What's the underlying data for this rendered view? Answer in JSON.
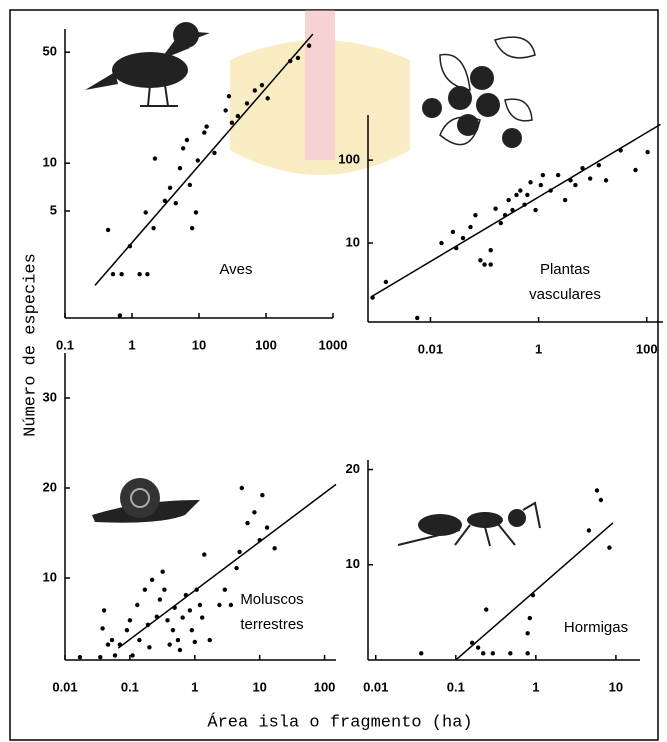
{
  "y_label": "Número de especies",
  "x_label": "Área isla o fragmento (ha)",
  "chart_data": [
    {
      "type": "scatter",
      "label": [
        "Aves"
      ],
      "xscale": "log",
      "yscale": "log",
      "color": "#000000",
      "xlim": [
        0.1,
        1000
      ],
      "ylim": [
        1,
        70
      ],
      "xticks": [
        0.1,
        1,
        10,
        100,
        1000
      ],
      "yticks": [
        5,
        10,
        50
      ],
      "x": [
        0.44,
        0.52,
        0.7,
        0.66,
        0.93,
        1.3,
        1.7,
        1.6,
        2.1,
        2.2,
        3.1,
        3.7,
        4.5,
        5.2,
        5.8,
        6.6,
        7.3,
        7.9,
        9,
        9.6,
        12,
        13,
        17,
        25,
        28,
        31,
        38,
        52,
        68,
        87,
        106,
        230,
        300,
        440
      ],
      "values": [
        3.8,
        2,
        2,
        1.1,
        3,
        2,
        2,
        4.9,
        3.9,
        10.7,
        5.8,
        7,
        5.6,
        9.3,
        12.4,
        14,
        7.3,
        3.9,
        4.9,
        10.4,
        15.6,
        17,
        11.6,
        21.5,
        26.4,
        18,
        19.8,
        23.8,
        28.7,
        31,
        25.6,
        44,
        46,
        55
      ],
      "fit": {
        "x": [
          0.28,
          500
        ],
        "y": [
          1.7,
          65
        ]
      }
    },
    {
      "type": "scatter",
      "label": [
        "Plantas",
        "vasculares"
      ],
      "xscale": "log",
      "yscale": "log",
      "color": "#000000",
      "xlim": [
        0.0007,
        200
      ],
      "ylim": [
        1,
        350
      ],
      "xticks": [
        0.01,
        1,
        100
      ],
      "yticks": [
        10,
        100
      ],
      "x": [
        0.00085,
        0.0015,
        0.0057,
        0.016,
        0.026,
        0.03,
        0.04,
        0.055,
        0.068,
        0.084,
        0.1,
        0.13,
        0.13,
        0.16,
        0.2,
        0.24,
        0.28,
        0.33,
        0.39,
        0.46,
        0.55,
        0.62,
        0.71,
        0.88,
        1.1,
        1.2,
        1.67,
        2.3,
        3.1,
        3.9,
        4.8,
        6.5,
        9,
        13,
        17.7,
        33,
        62,
        104
      ],
      "values": [
        2.2,
        3.4,
        1.25,
        10,
        13.6,
        8.7,
        11.5,
        15.6,
        21.7,
        6.2,
        5.5,
        5.5,
        8.2,
        26,
        17.4,
        21.7,
        33,
        25,
        38,
        43,
        29,
        38,
        54,
        25,
        50,
        66,
        43,
        66,
        33,
        57,
        50,
        80,
        60,
        87,
        57,
        131,
        76,
        125
      ],
      "fit": {
        "x": [
          0.00085,
          180
        ],
        "y": [
          2.3,
          270
        ]
      }
    },
    {
      "type": "scatter",
      "label": [
        "Moluscos",
        "terrestres"
      ],
      "xscale": "log",
      "yscale": "linear",
      "color": "#000000",
      "xlim": [
        0.01,
        150
      ],
      "ylim": [
        1,
        35
      ],
      "xticks": [
        0.01,
        0.1,
        1,
        10,
        100
      ],
      "yticks": [
        10,
        20,
        30
      ],
      "x": [
        0.017,
        0.035,
        0.038,
        0.046,
        0.04,
        0.053,
        0.059,
        0.07,
        0.09,
        0.1,
        0.11,
        0.13,
        0.14,
        0.17,
        0.19,
        0.2,
        0.22,
        0.26,
        0.29,
        0.32,
        0.34,
        0.38,
        0.41,
        0.46,
        0.49,
        0.55,
        0.59,
        0.65,
        0.73,
        0.84,
        0.9,
        1,
        1.07,
        1.2,
        1.3,
        1.4,
        1.7,
        2.4,
        2.9,
        3.6,
        4.4,
        4.9,
        5.3,
        6.5,
        8.3,
        10,
        11,
        13,
        17
      ],
      "values": [
        1.2,
        1.2,
        4.4,
        2.6,
        6.4,
        3.1,
        1.4,
        2.6,
        4.2,
        5.3,
        1.4,
        7,
        3.1,
        8.7,
        4.8,
        2.3,
        9.8,
        5.7,
        7.6,
        10.7,
        8.7,
        5.3,
        2.6,
        4.2,
        6.7,
        3.1,
        2,
        5.6,
        8.1,
        6.4,
        4.2,
        2.9,
        8.7,
        7,
        5.6,
        12.6,
        3.1,
        7,
        8.7,
        7,
        11.1,
        12.9,
        20,
        16.1,
        17.3,
        14.2,
        19.2,
        15.6,
        13.3
      ],
      "fit": {
        "x": [
          0.066,
          150
        ],
        "y": [
          2.2,
          20.4
        ]
      }
    },
    {
      "type": "scatter",
      "label": [
        "Hormigas"
      ],
      "xscale": "log",
      "yscale": "linear",
      "color": "#000000",
      "xlim": [
        0.008,
        20
      ],
      "ylim": [
        0,
        21
      ],
      "xticks": [
        0.01,
        0.1,
        1,
        10
      ],
      "yticks": [
        10,
        20
      ],
      "x": [
        0.037,
        0.16,
        0.19,
        0.24,
        0.22,
        0.29,
        0.48,
        0.79,
        0.84,
        0.79,
        0.92,
        4.6,
        5.8,
        6.5,
        8.3
      ],
      "values": [
        0.7,
        1.8,
        1.3,
        5.3,
        0.7,
        0.7,
        0.7,
        2.8,
        4.4,
        0.7,
        6.8,
        13.6,
        17.8,
        16.8,
        11.8
      ],
      "fit": {
        "x": [
          0.1,
          9.2
        ],
        "y": [
          0,
          14.4
        ]
      }
    }
  ]
}
